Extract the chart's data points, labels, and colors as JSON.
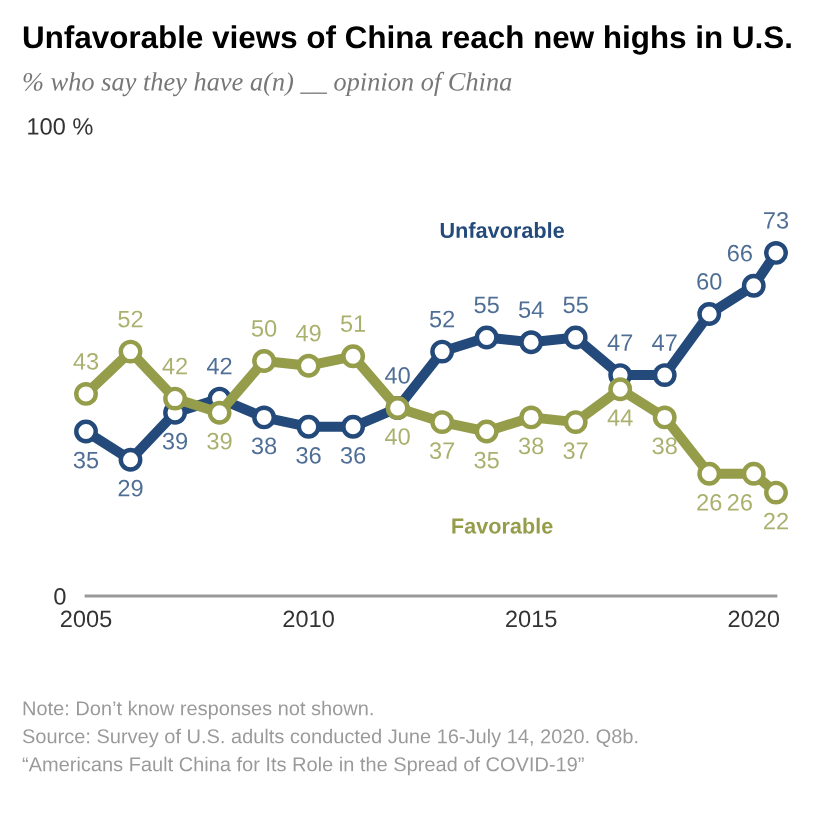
{
  "chart_data": {
    "type": "line",
    "title": "Unfavorable views of China reach new highs in U.S.",
    "subtitle": "% who say they have a(n) __ opinion of China",
    "annotations": [
      "Note: Don’t know responses not shown.",
      "Source: Survey of U.S. adults conducted June 16-July 14, 2020. Q8b.",
      "“Americans Fault China for Its Role in the Spread of COVID-19”"
    ],
    "x": [
      2005,
      2006,
      2007,
      2008,
      2009,
      2010,
      2011,
      2012,
      2013,
      2014,
      2015,
      2016,
      2017,
      2018,
      2019,
      2020,
      2020.5
    ],
    "series": [
      {
        "name": "Unfavorable",
        "color": "#234a7a",
        "values": [
          35,
          29,
          39,
          42,
          38,
          36,
          36,
          40,
          52,
          55,
          54,
          55,
          47,
          47,
          60,
          66,
          73
        ]
      },
      {
        "name": "Favorable",
        "color": "#959c4a",
        "values": [
          43,
          52,
          42,
          39,
          50,
          49,
          51,
          40,
          37,
          35,
          38,
          37,
          44,
          38,
          26,
          26,
          22
        ]
      }
    ],
    "xlim": [
      2005,
      2020.5
    ],
    "xticks": [
      2005,
      2010,
      2015,
      2020
    ],
    "ylim": [
      0,
      100
    ],
    "yticks": [
      0,
      {
        "value": 100,
        "label": "100 %"
      }
    ],
    "data_labels": true,
    "marker": "circle",
    "line_style": "solid"
  }
}
